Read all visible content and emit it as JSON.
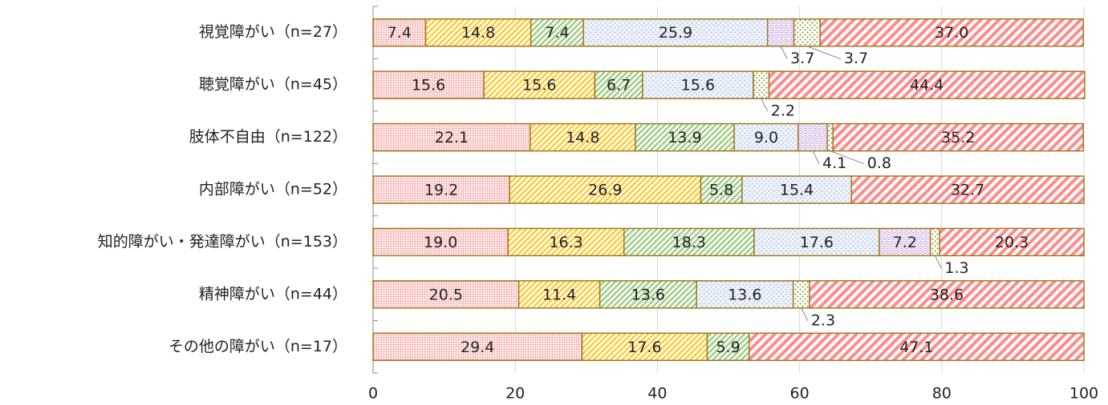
{
  "chart_data": {
    "type": "stacked_barh",
    "categories": [
      "視覚障がい（n=27）",
      "聴覚障がい（n=45）",
      "肢体不自由（n=122）",
      "内部障がい（n=52）",
      "知的障がい・発達障がい（n=153）",
      "精神障がい（n=44）",
      "その他の障がい（n=17）"
    ],
    "series": [
      {
        "color": "#f79a9a",
        "values": [
          7.4,
          15.6,
          22.1,
          19.2,
          19.0,
          20.5,
          29.4
        ]
      },
      {
        "color": "#ffcc33",
        "values": [
          14.8,
          15.6,
          14.8,
          26.9,
          16.3,
          11.4,
          17.6
        ]
      },
      {
        "color": "#9fcc86",
        "values": [
          7.4,
          6.7,
          13.9,
          5.8,
          18.3,
          13.6,
          5.9
        ]
      },
      {
        "color": "#b4c7e7",
        "values": [
          25.9,
          15.6,
          9.0,
          15.4,
          17.6,
          13.6,
          null
        ]
      },
      {
        "color": "#c39be0",
        "values": [
          3.7,
          null,
          4.1,
          null,
          7.2,
          null,
          null
        ]
      },
      {
        "color": "#8aa84a",
        "values": [
          3.7,
          2.2,
          0.8,
          null,
          1.3,
          2.3,
          null
        ]
      },
      {
        "color": "#ff8a8a",
        "values": [
          37.0,
          44.4,
          35.2,
          32.7,
          20.3,
          38.6,
          47.1
        ]
      }
    ],
    "value_labels": [
      [
        "7.4",
        "15.6",
        "22.1",
        "19.2",
        "19.0",
        "20.5",
        "29.4"
      ],
      [
        "14.8",
        "15.6",
        "14.8",
        "26.9",
        "16.3",
        "11.4",
        "17.6"
      ],
      [
        "7.4",
        "6.7",
        "13.9",
        "5.8",
        "18.3",
        "13.6",
        "5.9"
      ],
      [
        "25.9",
        "15.6",
        "9.0",
        "15.4",
        "17.6",
        "13.6",
        null
      ],
      [
        "3.7",
        null,
        "4.1",
        null,
        "7.2",
        null,
        null
      ],
      [
        "3.7",
        "2.2",
        "0.8",
        null,
        "1.3",
        "2.3",
        null
      ],
      [
        "37.0",
        "44.4",
        "35.2",
        "32.7",
        "20.3",
        "38.6",
        "47.1"
      ]
    ],
    "xlim": [
      0,
      100
    ],
    "xticks": [
      0,
      20,
      40,
      60,
      80,
      100
    ],
    "grid": true
  }
}
